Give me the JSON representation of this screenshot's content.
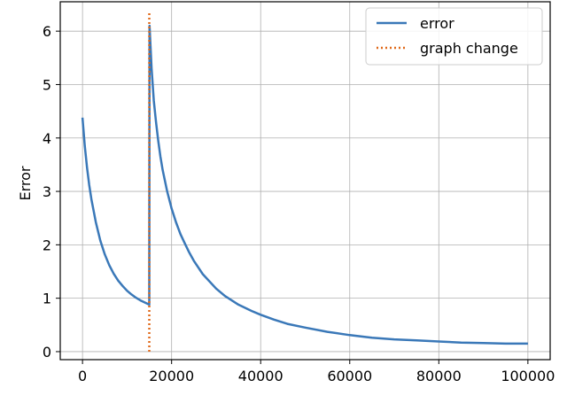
{
  "chart_data": {
    "type": "line",
    "title": "",
    "xlabel": "",
    "ylabel": "Error",
    "xlim": [
      -5000,
      105000
    ],
    "ylim": [
      -0.15,
      6.55
    ],
    "xticks": [
      0,
      20000,
      40000,
      60000,
      80000,
      100000
    ],
    "xtick_labels": [
      "0",
      "20000",
      "40000",
      "60000",
      "80000",
      "100000"
    ],
    "yticks": [
      0,
      1,
      2,
      3,
      4,
      5,
      6
    ],
    "ytick_labels": [
      "0",
      "1",
      "2",
      "3",
      "4",
      "5",
      "6"
    ],
    "grid": true,
    "legend_position": "top-right",
    "series": [
      {
        "name": "error",
        "style": "solid",
        "color": "#3a78b8",
        "x": [
          0,
          500,
          1000,
          1500,
          2000,
          3000,
          4000,
          5000,
          6000,
          7000,
          8000,
          9000,
          10000,
          11000,
          12000,
          13000,
          14000,
          15000,
          15050,
          15500,
          16000,
          16500,
          17000,
          17500,
          18000,
          19000,
          20000,
          21000,
          22000,
          23000,
          24000,
          25000,
          27000,
          30000,
          32000,
          35000,
          38000,
          40000,
          43000,
          46000,
          50000,
          55000,
          60000,
          65000,
          70000,
          75000,
          80000,
          85000,
          90000,
          95000,
          100000
        ],
        "y": [
          4.38,
          3.85,
          3.45,
          3.12,
          2.85,
          2.42,
          2.08,
          1.82,
          1.62,
          1.46,
          1.33,
          1.23,
          1.14,
          1.07,
          1.01,
          0.96,
          0.92,
          0.88,
          6.1,
          5.3,
          4.7,
          4.3,
          3.95,
          3.65,
          3.4,
          3.0,
          2.68,
          2.42,
          2.2,
          2.02,
          1.85,
          1.7,
          1.45,
          1.18,
          1.04,
          0.88,
          0.76,
          0.69,
          0.6,
          0.52,
          0.45,
          0.37,
          0.31,
          0.26,
          0.23,
          0.21,
          0.19,
          0.17,
          0.16,
          0.15,
          0.15
        ]
      },
      {
        "name": "graph change",
        "style": "dotted",
        "color": "#e06a1b",
        "x": [
          15000,
          15000
        ],
        "y": [
          0,
          6.35
        ]
      }
    ]
  }
}
